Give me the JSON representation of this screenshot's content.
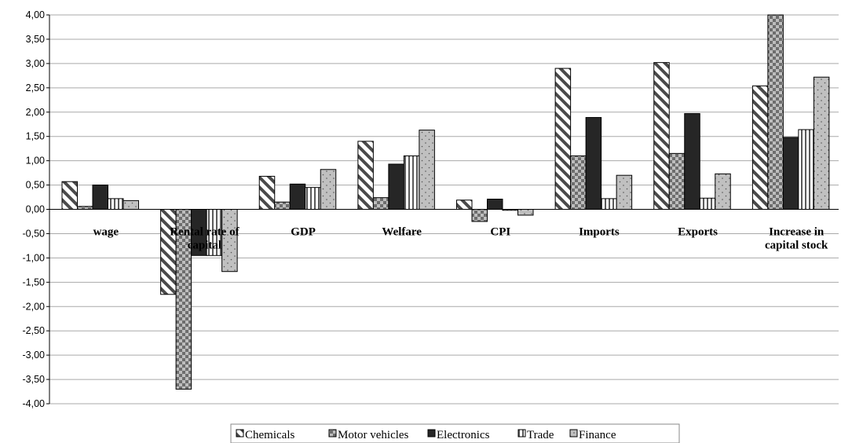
{
  "chart_data": {
    "type": "bar",
    "title": "",
    "xlabel": "",
    "ylabel": "",
    "ylim": [
      -4.0,
      4.0
    ],
    "yticks": [
      "4,00",
      "3,50",
      "3,00",
      "2,50",
      "2,00",
      "1,50",
      "1,00",
      "0,50",
      "0,00",
      "-0,50",
      "-1,00",
      "-1,50",
      "-2,00",
      "-2,50",
      "-3,00",
      "-3,50",
      "-4,00"
    ],
    "grid": true,
    "legend_position": "bottom",
    "categories": [
      [
        "wage"
      ],
      [
        "Rental rate of",
        "capital"
      ],
      [
        "GDP"
      ],
      [
        "Welfare"
      ],
      [
        "CPI"
      ],
      [
        "Imports"
      ],
      [
        "Exports"
      ],
      [
        "Increase in",
        "capital stock"
      ]
    ],
    "series": [
      {
        "name": "Chemicals",
        "pattern": "diagonal",
        "values": [
          0.57,
          -1.75,
          0.68,
          1.4,
          0.19,
          2.9,
          3.02,
          2.54
        ]
      },
      {
        "name": "Motor vehicles",
        "pattern": "checker",
        "values": [
          0.06,
          -3.7,
          0.15,
          0.24,
          -0.25,
          1.1,
          1.15,
          4.0
        ]
      },
      {
        "name": "Electronics",
        "pattern": "solid",
        "values": [
          0.5,
          -0.95,
          0.52,
          0.93,
          0.21,
          1.89,
          1.97,
          1.48
        ]
      },
      {
        "name": "Trade",
        "pattern": "vertical",
        "values": [
          0.22,
          -0.95,
          0.45,
          1.1,
          -0.02,
          0.22,
          0.23,
          1.64
        ]
      },
      {
        "name": "Finance",
        "pattern": "dots",
        "values": [
          0.18,
          -1.28,
          0.82,
          1.63,
          -0.12,
          0.7,
          0.73,
          2.72
        ]
      }
    ],
    "colors": {
      "checker_dark": "#6e6e6e",
      "checker_light": "#bdbdbd",
      "solid": "#262626",
      "dots_bg": "#c0c0c0",
      "grid": "#a9a9a9"
    }
  }
}
